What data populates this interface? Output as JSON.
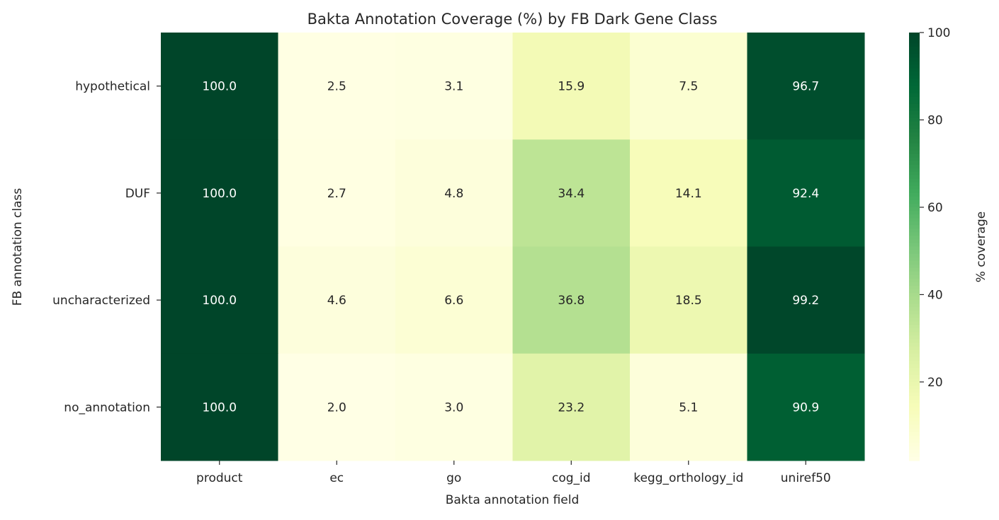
{
  "chart_data": {
    "type": "heatmap",
    "title": "Bakta Annotation Coverage (%) by FB Dark Gene Class",
    "xlabel": "Bakta annotation field",
    "ylabel": "FB annotation class",
    "x_categories": [
      "product",
      "ec",
      "go",
      "cog_id",
      "kegg_orthology_id",
      "uniref50"
    ],
    "y_categories": [
      "hypothetical",
      "DUF",
      "uncharacterized",
      "no_annotation"
    ],
    "values": [
      [
        100.0,
        2.5,
        3.1,
        15.9,
        7.5,
        96.7
      ],
      [
        100.0,
        2.7,
        4.8,
        34.4,
        14.1,
        92.4
      ],
      [
        100.0,
        4.6,
        6.6,
        36.8,
        18.5,
        99.2
      ],
      [
        100.0,
        2.0,
        3.0,
        23.2,
        5.1,
        90.9
      ]
    ],
    "value_format": "0.1f",
    "colormap": "YlGn",
    "colorbar": {
      "label": "% coverage",
      "range": [
        2.0,
        100
      ],
      "ticks": [
        20,
        40,
        60,
        80,
        100
      ]
    },
    "text_colors": {
      "dark": "#262626",
      "light": "#ffffff"
    }
  }
}
